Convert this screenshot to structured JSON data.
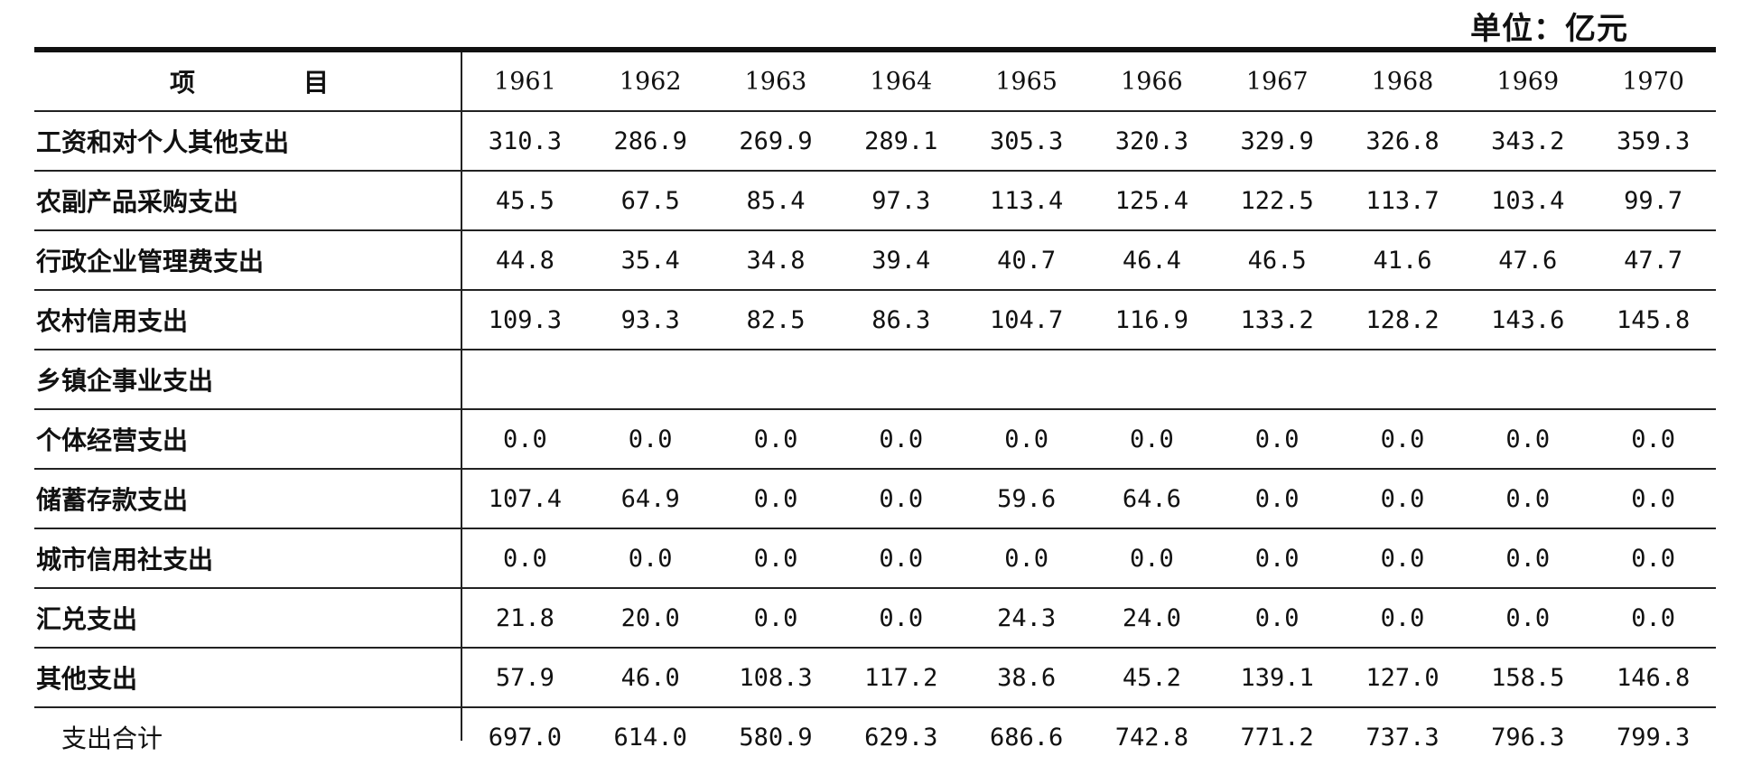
{
  "unit": "单位：亿元",
  "header": {
    "item": [
      "项",
      "目"
    ],
    "years": [
      "1961",
      "1962",
      "1963",
      "1964",
      "1965",
      "1966",
      "1967",
      "1968",
      "1969",
      "1970"
    ]
  },
  "rows": [
    {
      "label": "工资和对个人其他支出",
      "values": [
        "310.3",
        "286.9",
        "269.9",
        "289.1",
        "305.3",
        "320.3",
        "329.9",
        "326.8",
        "343.2",
        "359.3"
      ]
    },
    {
      "label": "农副产品采购支出",
      "values": [
        "45.5",
        "67.5",
        "85.4",
        "97.3",
        "113.4",
        "125.4",
        "122.5",
        "113.7",
        "103.4",
        "99.7"
      ]
    },
    {
      "label": "行政企业管理费支出",
      "values": [
        "44.8",
        "35.4",
        "34.8",
        "39.4",
        "40.7",
        "46.4",
        "46.5",
        "41.6",
        "47.6",
        "47.7"
      ]
    },
    {
      "label": "农村信用支出",
      "values": [
        "109.3",
        "93.3",
        "82.5",
        "86.3",
        "104.7",
        "116.9",
        "133.2",
        "128.2",
        "143.6",
        "145.8"
      ]
    },
    {
      "label": "乡镇企事业支出",
      "values": [
        "",
        "",
        "",
        "",
        "",
        "",
        "",
        "",
        "",
        ""
      ]
    },
    {
      "label": "个体经营支出",
      "values": [
        "0.0",
        "0.0",
        "0.0",
        "0.0",
        "0.0",
        "0.0",
        "0.0",
        "0.0",
        "0.0",
        "0.0"
      ]
    },
    {
      "label": "储蓄存款支出",
      "values": [
        "107.4",
        "64.9",
        "0.0",
        "0.0",
        "59.6",
        "64.6",
        "0.0",
        "0.0",
        "0.0",
        "0.0"
      ]
    },
    {
      "label": "城市信用社支出",
      "values": [
        "0.0",
        "0.0",
        "0.0",
        "0.0",
        "0.0",
        "0.0",
        "0.0",
        "0.0",
        "0.0",
        "0.0"
      ]
    },
    {
      "label": "汇兑支出",
      "values": [
        "21.8",
        "20.0",
        "0.0",
        "0.0",
        "24.3",
        "24.0",
        "0.0",
        "0.0",
        "0.0",
        "0.0"
      ]
    },
    {
      "label": "其他支出",
      "values": [
        "57.9",
        "46.0",
        "108.3",
        "117.2",
        "38.6",
        "45.2",
        "139.1",
        "127.0",
        "158.5",
        "146.8"
      ]
    },
    {
      "label": "支出合计",
      "values": [
        "697.0",
        "614.0",
        "580.9",
        "629.3",
        "686.6",
        "742.8",
        "771.2",
        "737.3",
        "796.3",
        "799.3"
      ]
    }
  ]
}
